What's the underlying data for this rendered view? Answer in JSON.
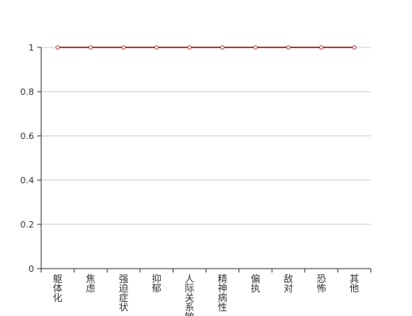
{
  "chart_data": {
    "type": "line",
    "categories": [
      "躯体化",
      "焦虑",
      "强迫症状",
      "抑郁",
      "人际关系敏感",
      "精神病性",
      "偏执",
      "敌对",
      "恐怖",
      "其他"
    ],
    "series": [
      {
        "values": [
          1,
          1,
          1,
          1,
          1,
          1,
          1,
          1,
          1,
          1
        ]
      }
    ],
    "ylim": [
      0,
      1
    ],
    "yticks": [
      0,
      0.2,
      0.4,
      0.6,
      0.8,
      1
    ],
    "ytick_labels": [
      "0",
      "0.2",
      "0.4",
      "0.6",
      "0.8",
      "1"
    ],
    "grid": "horizontal",
    "colors": {
      "line": "#b03a3a",
      "axis": "#333333",
      "grid": "#cccccc",
      "text": "#333333"
    }
  }
}
